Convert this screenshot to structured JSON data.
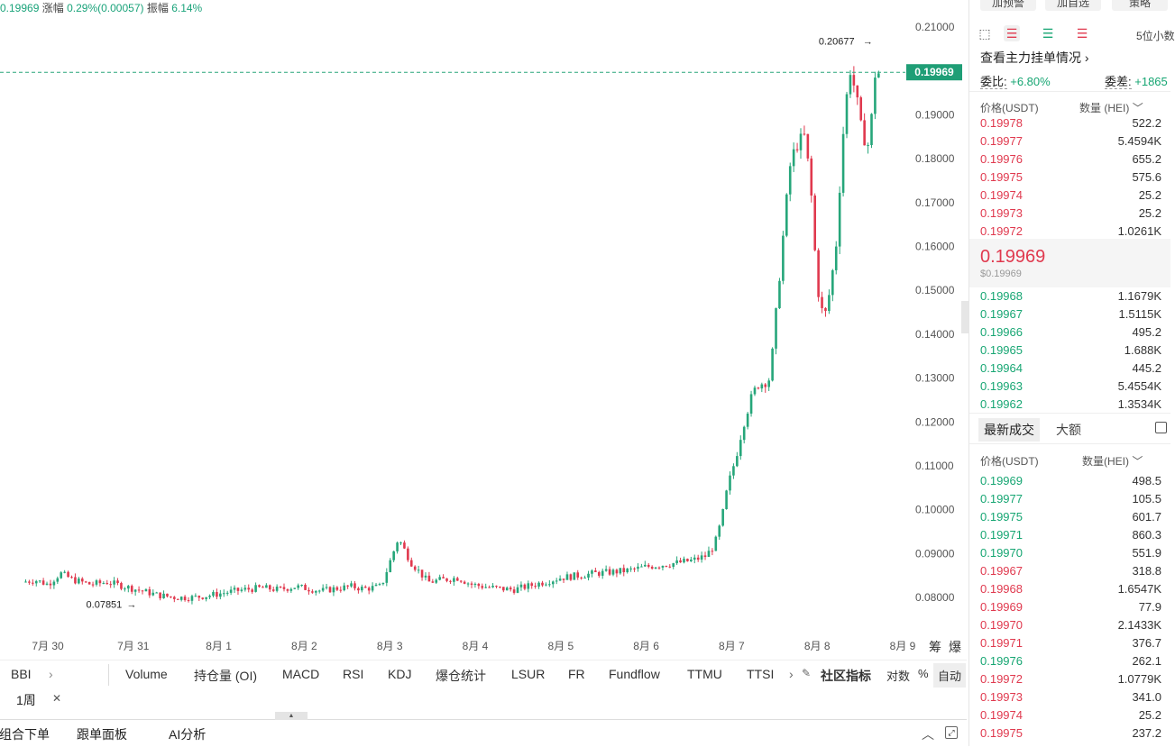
{
  "ticker": {
    "last": "0.19969",
    "change_label": "涨幅",
    "change_value": "0.29%(0.00057)",
    "amplitude_label": "振幅",
    "amplitude_value": "6.14%"
  },
  "chart_data": {
    "type": "candlestick",
    "interval": "1周",
    "x_ticks": [
      "7月 30",
      "7月 31",
      "8月 1",
      "8月 2",
      "8月 3",
      "8月 4",
      "8月 5",
      "8月 6",
      "8月 7",
      "8月 8",
      "8月 9"
    ],
    "y_ticks": [
      "0.21000",
      "0.20000",
      "0.19000",
      "0.18000",
      "0.17000",
      "0.16000",
      "0.15000",
      "0.14000",
      "0.13000",
      "0.12000",
      "0.11000",
      "0.10000",
      "0.09000",
      "0.08000"
    ],
    "ylim": [
      0.0765,
      0.2125
    ],
    "current_price": 0.19969,
    "current_price_label": "0.19969",
    "high_label": "0.20677",
    "high_value": 0.20677,
    "low_label": "0.07851",
    "low_value": 0.07851,
    "colors": {
      "up": "#26a67a",
      "down": "#e0394e"
    },
    "close_path": [
      [
        29.7,
        0.0835
      ],
      [
        29.85,
        0.084
      ],
      [
        30.0,
        0.083
      ],
      [
        30.15,
        0.0855
      ],
      [
        30.3,
        0.084
      ],
      [
        30.5,
        0.083
      ],
      [
        30.7,
        0.0835
      ],
      [
        30.9,
        0.0825
      ],
      [
        31.1,
        0.0815
      ],
      [
        31.3,
        0.0805
      ],
      [
        31.5,
        0.08
      ],
      [
        31.7,
        0.08
      ],
      [
        31.9,
        0.0805
      ],
      [
        32.1,
        0.0812
      ],
      [
        32.3,
        0.0818
      ],
      [
        32.5,
        0.0822
      ],
      [
        32.7,
        0.0818
      ],
      [
        32.9,
        0.0825
      ],
      [
        33.05,
        0.082
      ],
      [
        33.2,
        0.0815
      ],
      [
        33.35,
        0.082
      ],
      [
        33.55,
        0.0825
      ],
      [
        33.7,
        0.082
      ],
      [
        33.9,
        0.0825
      ],
      [
        34.1,
        0.0935
      ],
      [
        34.25,
        0.088
      ],
      [
        34.45,
        0.0835
      ],
      [
        34.6,
        0.084
      ],
      [
        34.8,
        0.0845
      ],
      [
        34.95,
        0.083
      ],
      [
        35.1,
        0.0825
      ],
      [
        35.3,
        0.082
      ],
      [
        35.45,
        0.0818
      ],
      [
        35.6,
        0.0825
      ],
      [
        35.8,
        0.0835
      ],
      [
        36.0,
        0.0845
      ],
      [
        36.2,
        0.085
      ],
      [
        36.4,
        0.0855
      ],
      [
        36.6,
        0.0858
      ],
      [
        36.8,
        0.0862
      ],
      [
        37.0,
        0.087
      ],
      [
        37.2,
        0.0875
      ],
      [
        37.4,
        0.088
      ],
      [
        37.55,
        0.0885
      ],
      [
        37.7,
        0.0895
      ],
      [
        37.8,
        0.092
      ],
      [
        37.88,
        0.0975
      ],
      [
        37.95,
        0.105
      ],
      [
        38.05,
        0.112
      ],
      [
        38.13,
        0.119
      ],
      [
        38.22,
        0.125
      ],
      [
        38.3,
        0.1285
      ],
      [
        38.38,
        0.129
      ],
      [
        38.45,
        0.13
      ],
      [
        38.52,
        0.145
      ],
      [
        38.6,
        0.162
      ],
      [
        38.68,
        0.178
      ],
      [
        38.75,
        0.183
      ],
      [
        38.85,
        0.185
      ],
      [
        38.92,
        0.175
      ],
      [
        39.0,
        0.151
      ],
      [
        39.08,
        0.143
      ],
      [
        39.15,
        0.15
      ],
      [
        39.22,
        0.16
      ],
      [
        39.3,
        0.185
      ],
      [
        39.38,
        0.201
      ],
      [
        39.45,
        0.195
      ],
      [
        39.52,
        0.186
      ],
      [
        39.6,
        0.183
      ],
      [
        39.68,
        0.199
      ],
      [
        39.74,
        0.1997
      ]
    ]
  },
  "indicators": {
    "main": "BBI",
    "items": [
      "Volume",
      "持仓量 (OI)",
      "MACD",
      "RSI",
      "KDJ",
      "爆仓统计",
      "LSUR",
      "FR",
      "Fundflow",
      "TTMU",
      "TTSI"
    ],
    "community": "社区指标",
    "log": "对数",
    "percent": "%",
    "auto": "自动"
  },
  "timeframe": {
    "label": "1周"
  },
  "bottom": {
    "tab1": "组合下单",
    "tab2": "跟单面板",
    "tab3": "AI分析"
  },
  "right_edge": {
    "chip": "筹",
    "burst": "爆"
  },
  "orderbook": {
    "btn_left": "加预警",
    "btn_mid": "加自选",
    "btn_right": "策略",
    "precision": "5位小数",
    "main_orders": "查看主力挂单情况",
    "ratio_label": "委比:",
    "ratio_value": "+6.80%",
    "diff_label": "委差:",
    "diff_value": "+1865",
    "col_price": "价格(USDT)",
    "col_qty": "数量 (HEI)",
    "asks": [
      {
        "p": "0.19978",
        "q": "522.2"
      },
      {
        "p": "0.19977",
        "q": "5.4594K"
      },
      {
        "p": "0.19976",
        "q": "655.2"
      },
      {
        "p": "0.19975",
        "q": "575.6"
      },
      {
        "p": "0.19974",
        "q": "25.2"
      },
      {
        "p": "0.19973",
        "q": "25.2"
      },
      {
        "p": "0.19972",
        "q": "1.0261K"
      }
    ],
    "mid_price": "0.19969",
    "mid_usd": "$0.19969",
    "bids": [
      {
        "p": "0.19968",
        "q": "1.1679K"
      },
      {
        "p": "0.19967",
        "q": "1.5115K"
      },
      {
        "p": "0.19966",
        "q": "495.2"
      },
      {
        "p": "0.19965",
        "q": "1.688K"
      },
      {
        "p": "0.19964",
        "q": "445.2"
      },
      {
        "p": "0.19963",
        "q": "5.4554K"
      },
      {
        "p": "0.19962",
        "q": "1.3534K"
      }
    ]
  },
  "trades": {
    "tab_latest": "最新成交",
    "tab_large": "大额",
    "col_price": "价格(USDT)",
    "col_qty": "数量(HEI)",
    "rows": [
      {
        "p": "0.19969",
        "q": "498.5",
        "side": "buy"
      },
      {
        "p": "0.19977",
        "q": "105.5",
        "side": "buy"
      },
      {
        "p": "0.19975",
        "q": "601.7",
        "side": "buy"
      },
      {
        "p": "0.19971",
        "q": "860.3",
        "side": "buy"
      },
      {
        "p": "0.19970",
        "q": "551.9",
        "side": "buy"
      },
      {
        "p": "0.19967",
        "q": "318.8",
        "side": "sell"
      },
      {
        "p": "0.19968",
        "q": "1.6547K",
        "side": "sell"
      },
      {
        "p": "0.19969",
        "q": "77.9",
        "side": "sell"
      },
      {
        "p": "0.19970",
        "q": "2.1433K",
        "side": "sell"
      },
      {
        "p": "0.19971",
        "q": "376.7",
        "side": "sell"
      },
      {
        "p": "0.19976",
        "q": "262.1",
        "side": "buy"
      },
      {
        "p": "0.19972",
        "q": "1.0779K",
        "side": "sell"
      },
      {
        "p": "0.19973",
        "q": "341.0",
        "side": "sell"
      },
      {
        "p": "0.19974",
        "q": "25.2",
        "side": "sell"
      },
      {
        "p": "0.19975",
        "q": "237.2",
        "side": "sell"
      }
    ]
  }
}
